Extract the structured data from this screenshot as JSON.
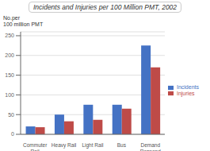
{
  "chart_data": {
    "type": "bar",
    "title": "Incidents and Injuries per 100 Million PMT, 2002",
    "ylabel": "No.per\n100 million PMT",
    "categories": [
      "Commuter\nRail",
      "Heavy Rail",
      "Light Rail",
      "Bus",
      "Demand\nRespond"
    ],
    "series": [
      {
        "name": "Incidents",
        "color": "#4472C4",
        "values": [
          20,
          50,
          75,
          75,
          225
        ]
      },
      {
        "name": "Injuries",
        "color": "#BE4B48",
        "values": [
          18,
          33,
          37,
          65,
          170
        ]
      }
    ],
    "ylim": [
      0,
      260
    ],
    "yticks": [
      0,
      50,
      100,
      150,
      200,
      250
    ],
    "grid": true,
    "legend": "right"
  }
}
